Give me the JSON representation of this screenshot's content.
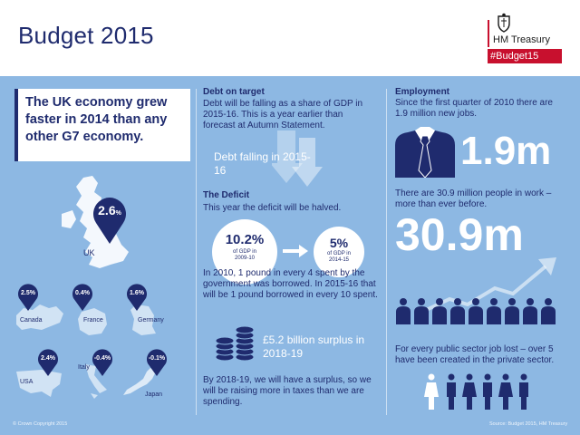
{
  "header": {
    "title": "Budget 2015",
    "brand": "HM Treasury",
    "hashtag": "#Budget15"
  },
  "growth": {
    "headline": "The UK economy grew faster in 2014 than any other G7 economy.",
    "uk": {
      "name": "UK",
      "value": "2.6",
      "unit": "%"
    },
    "countries": [
      {
        "name": "Canada",
        "value": "2.5%"
      },
      {
        "name": "France",
        "value": "0.4%"
      },
      {
        "name": "Germany",
        "value": "1.6%"
      },
      {
        "name": "USA",
        "value": "2.4%"
      },
      {
        "name": "Italy",
        "value": "-0.4%"
      },
      {
        "name": "Japan",
        "value": "-0.1%"
      }
    ]
  },
  "debt": {
    "heading": "Debt on target",
    "body": "Debt will be falling as a share of GDP in 2015-16. This is a year earlier than forecast at Autumn Statement.",
    "callout": "Debt falling in 2015-16"
  },
  "deficit": {
    "heading": "The Deficit",
    "intro": "This year the deficit will be halved.",
    "from_value": "10.2%",
    "from_label": "of GDP in 2009-10",
    "to_value": "5%",
    "to_label": "of GDP in 2014-15",
    "body": "In 2010, 1 pound in every 4 spent by the government was borrowed. In 2015-16 that will be 1 pound borrowed in every 10 spent.",
    "surplus_callout": "£5.2 billion surplus in 2018-19",
    "surplus_body": "By 2018-19, we will have a surplus, so we will be raising more in taxes than we are spending."
  },
  "employment": {
    "heading": "Employment",
    "intro": "Since the first quarter of 2010 there are 1.9 million new jobs.",
    "new_jobs": "1.9m",
    "in_work_text": "There are 30.9 million people in work – more than ever before.",
    "in_work": "30.9m",
    "private_sector": "For every public sector job lost – over 5 have been created in the private sector."
  },
  "footer": {
    "copyright": "© Crown Copyright 2015",
    "source": "Source: Budget 2015, HM Treasury"
  },
  "colors": {
    "navy": "#1f2b6e",
    "background": "#8db8e3",
    "red": "#c8102e"
  }
}
